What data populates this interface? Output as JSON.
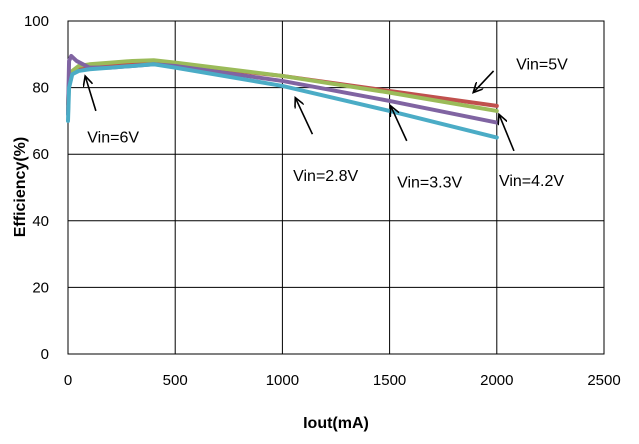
{
  "chart_data": {
    "type": "line",
    "xlabel": "Iout(mA)",
    "ylabel": "Efficiency(%)",
    "xlim": [
      0,
      2500
    ],
    "ylim": [
      0,
      100
    ],
    "xticks": [
      0,
      500,
      1000,
      1500,
      2000,
      2500
    ],
    "yticks": [
      0,
      20,
      40,
      60,
      80,
      100
    ],
    "grid": true,
    "legend": "none",
    "series": [
      {
        "name": "Vin=5V",
        "color": "#c0504d",
        "points": [
          [
            0,
            75
          ],
          [
            5,
            82
          ],
          [
            20,
            84.5
          ],
          [
            50,
            85.5
          ],
          [
            100,
            86
          ],
          [
            200,
            86.5
          ],
          [
            300,
            87
          ],
          [
            400,
            87.2
          ],
          [
            500,
            87
          ],
          [
            1000,
            83.5
          ],
          [
            1500,
            79
          ],
          [
            2000,
            74.5
          ]
        ]
      },
      {
        "name": "Vin=4.2V",
        "color": "#9bbb59",
        "points": [
          [
            0,
            73
          ],
          [
            5,
            82
          ],
          [
            20,
            85
          ],
          [
            50,
            86.5
          ],
          [
            100,
            87
          ],
          [
            200,
            87.5
          ],
          [
            300,
            88
          ],
          [
            400,
            88.2
          ],
          [
            500,
            87.5
          ],
          [
            1000,
            83.5
          ],
          [
            1500,
            78.5
          ],
          [
            2000,
            73
          ]
        ]
      },
      {
        "name": "Vin=3.3V",
        "color": "#8064a2",
        "points": [
          [
            0,
            72
          ],
          [
            5,
            88
          ],
          [
            15,
            89.5
          ],
          [
            40,
            88
          ],
          [
            100,
            86
          ],
          [
            200,
            86
          ],
          [
            300,
            86.5
          ],
          [
            400,
            87
          ],
          [
            500,
            86.5
          ],
          [
            1000,
            82
          ],
          [
            1500,
            76
          ],
          [
            2000,
            69.5
          ]
        ]
      },
      {
        "name": "Vin=2.8V",
        "color": "#4bacc6",
        "points": [
          [
            0,
            70
          ],
          [
            5,
            80
          ],
          [
            20,
            84
          ],
          [
            50,
            85
          ],
          [
            100,
            85.5
          ],
          [
            200,
            86
          ],
          [
            300,
            86.5
          ],
          [
            400,
            87
          ],
          [
            500,
            86
          ],
          [
            1000,
            80.5
          ],
          [
            1500,
            73
          ],
          [
            2000,
            65
          ]
        ]
      }
    ],
    "annotations": [
      {
        "text": "Vin=6V",
        "label_at": [
          90,
          63.5
        ],
        "arrow_from": [
          130,
          73
        ],
        "arrow_to": [
          80,
          83.5
        ]
      },
      {
        "text": "Vin=2.8V",
        "label_at": [
          1050,
          52
        ],
        "arrow_from": [
          1140,
          66
        ],
        "arrow_to": [
          1060,
          77
        ]
      },
      {
        "text": "Vin=3.3V",
        "label_at": [
          1535,
          50
        ],
        "arrow_from": [
          1580,
          64
        ],
        "arrow_to": [
          1505,
          74.5
        ]
      },
      {
        "text": "Vin=4.2V",
        "label_at": [
          2010,
          50.5
        ],
        "arrow_from": [
          2080,
          61
        ],
        "arrow_to": [
          2010,
          72
        ]
      },
      {
        "text": "Vin=5V",
        "label_at": [
          2090,
          85.5
        ],
        "arrow_from": [
          1985,
          85
        ],
        "arrow_to": [
          1890,
          78.5
        ]
      }
    ]
  }
}
